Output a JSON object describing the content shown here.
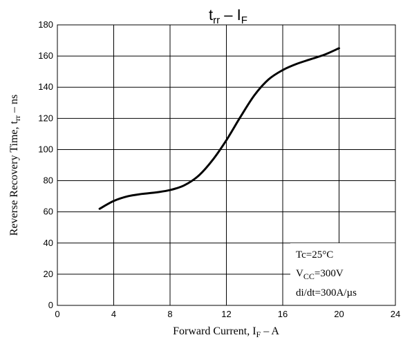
{
  "chart_data": {
    "type": "line",
    "title": {
      "main": "t",
      "main_sub": "rr",
      "sep": " – ",
      "rhs": "I",
      "rhs_sub": "F"
    },
    "xlabel": {
      "prefix": "Forward Current, I",
      "sub": "F",
      "suffix": " – A"
    },
    "ylabel": {
      "prefix": "Reverse Recovery Time, t",
      "sub": "rr",
      "suffix": " – ns"
    },
    "xlim": [
      0,
      24
    ],
    "ylim": [
      0,
      180
    ],
    "xticks": [
      0,
      4,
      8,
      12,
      16,
      20,
      24
    ],
    "yticks": [
      0,
      20,
      40,
      60,
      80,
      100,
      120,
      140,
      160,
      180
    ],
    "grid": true,
    "series": [
      {
        "x": [
          3,
          4,
          5,
          6,
          7,
          8,
          9,
          10,
          11,
          12,
          13,
          14,
          15,
          16,
          17,
          18,
          19,
          20
        ],
        "y": [
          62,
          67,
          70,
          71.5,
          72.5,
          74,
          77,
          83,
          93,
          106,
          121,
          135,
          145,
          151,
          155,
          158,
          161,
          165
        ]
      }
    ],
    "annotations": [
      {
        "text": "Tc=25°C"
      },
      {
        "prefix": "V",
        "sub": "CC",
        "suffix": "=300V"
      },
      {
        "text": "di/dt=300A/µs"
      }
    ]
  }
}
